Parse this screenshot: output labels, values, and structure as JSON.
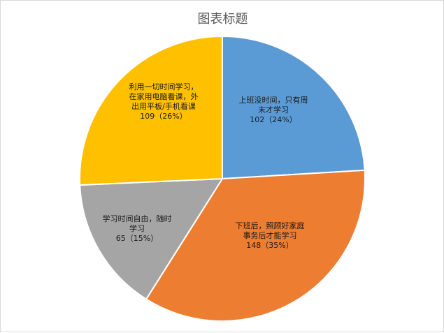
{
  "chart_data": {
    "type": "pie",
    "title": "图表标题",
    "slices": [
      {
        "lines": [
          "上班没时间，只有周",
          "末才学习"
        ],
        "value": 102,
        "percent": "24%",
        "value_label": "102（24%）",
        "color": "#5b9bd5"
      },
      {
        "lines": [
          "下班后，照顾好家庭",
          "事务后才能学习"
        ],
        "value": 148,
        "percent": "35%",
        "value_label": "148（35%）",
        "color": "#ed7d31"
      },
      {
        "lines": [
          "学习时间自由，随时",
          "学习"
        ],
        "value": 65,
        "percent": "15%",
        "value_label": "65（15%）",
        "color": "#a5a5a5"
      },
      {
        "lines": [
          "利用一切时间学习，",
          "在家用电脑看课，外",
          "出用平板/手机看课"
        ],
        "value": 109,
        "percent": "26%",
        "value_label": "109（26%）",
        "color": "#ffc000"
      }
    ]
  }
}
